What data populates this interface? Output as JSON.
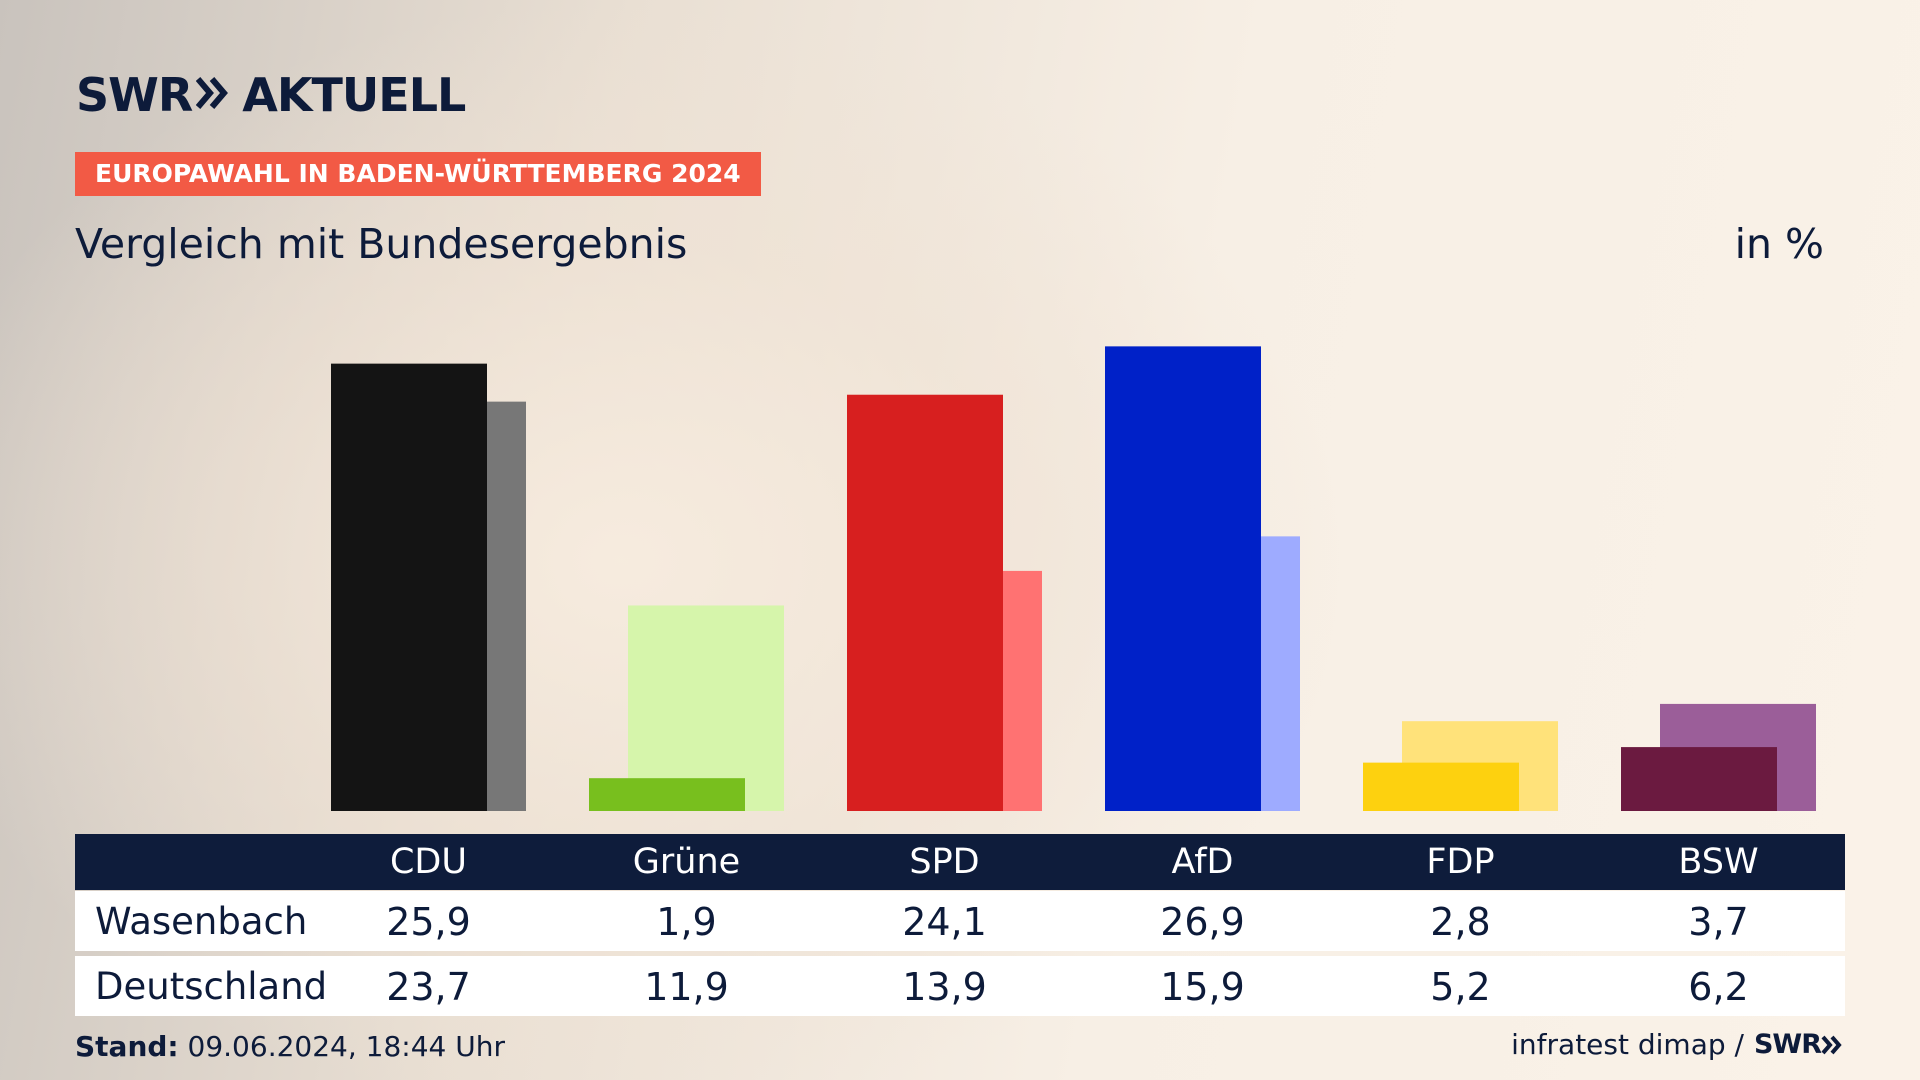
{
  "brand": {
    "logo_left": "SWR",
    "logo_right": "AKTUELL",
    "footer_logo": "SWR"
  },
  "kicker": "EUROPAWAHL IN BADEN-WÜRTTEMBERG 2024",
  "title": "Vergleich mit Bundesergebnis",
  "unit": "in %",
  "chart_data": {
    "type": "bar",
    "title": "Vergleich mit Bundesergebnis",
    "ylabel": "in %",
    "categories": [
      "CDU",
      "Grüne",
      "SPD",
      "AfD",
      "FDP",
      "BSW"
    ],
    "series": [
      {
        "name": "Wasenbach",
        "values": [
          25.9,
          1.9,
          24.1,
          26.9,
          2.8,
          3.7
        ],
        "labels": [
          "25,9",
          "1,9",
          "24,1",
          "26,9",
          "2,8",
          "3,7"
        ]
      },
      {
        "name": "Deutschland",
        "values": [
          23.7,
          11.9,
          13.9,
          15.9,
          5.2,
          6.2
        ],
        "labels": [
          "23,7",
          "11,9",
          "13,9",
          "15,9",
          "5,2",
          "6,2"
        ]
      }
    ],
    "colors": {
      "primary": [
        "#141414",
        "#78bf1e",
        "#d71f1f",
        "#0021c8",
        "#fdd10f",
        "#6b1a40"
      ],
      "secondary": [
        "#777777",
        "#d6f5ab",
        "#ff7272",
        "#9eabff",
        "#ffe27a",
        "#9b5e99"
      ]
    },
    "ylim": [
      0,
      27.5
    ],
    "grid": false
  },
  "footer": {
    "stand_label": "Stand:",
    "stand_value": "09.06.2024, 18:44 Uhr",
    "source": "infratest dimap /"
  }
}
